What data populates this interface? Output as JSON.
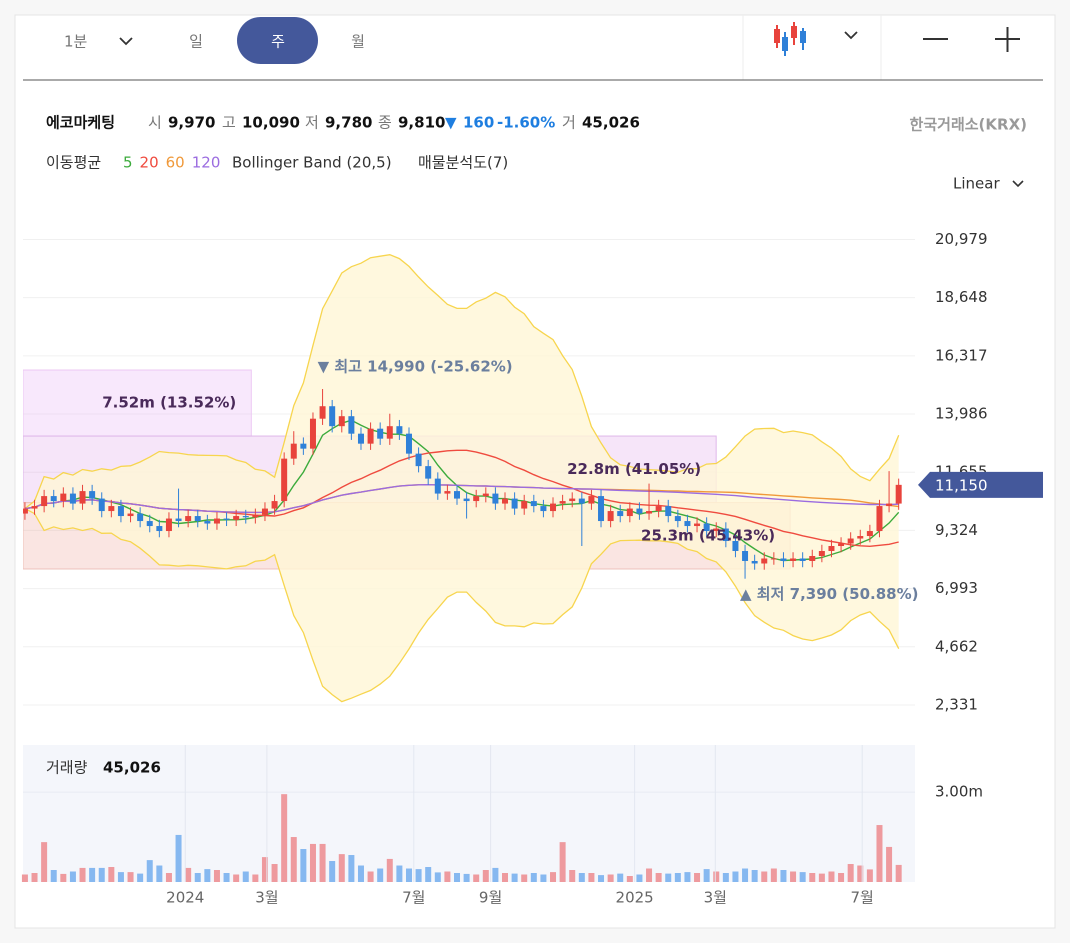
{
  "toolbar": {
    "interval": "1분",
    "tabs": [
      "일",
      "주",
      "월"
    ],
    "active_tab": 1,
    "scale": "Linear"
  },
  "header": {
    "name": "에코마케팅",
    "open_label": "시",
    "open": "9,970",
    "high_label": "고",
    "high": "10,090",
    "low_label": "저",
    "low": "9,780",
    "close_label": "종",
    "close": "9,810",
    "change_arrow": "▼",
    "change": "160",
    "change_pct": "-1.60%",
    "volume_label": "거",
    "volume": "45,026",
    "exchange": "한국거래소(KRX)"
  },
  "chart_data": {
    "type": "candlestick",
    "ma_label": "이동평균",
    "moving_averages": [
      {
        "period": 5,
        "color": "#3cab3c"
      },
      {
        "period": 20,
        "color": "#ef4b3f"
      },
      {
        "period": 60,
        "color": "#f0993a"
      },
      {
        "period": 120,
        "color": "#9b6ce0"
      }
    ],
    "bollinger": {
      "label": "Bollinger Band (20,5)",
      "period": 20,
      "k": 5,
      "color": "#f7d54e",
      "fill": "#fff6d6"
    },
    "up_color": "#e8433c",
    "down_color": "#2f80d8",
    "xlim": [
      -0.2,
      92.7
    ],
    "xticks": [
      {
        "value": 16.7,
        "label": "2024"
      },
      {
        "value": 25.2,
        "label": "3월"
      },
      {
        "value": 40.5,
        "label": "7월"
      },
      {
        "value": 48.5,
        "label": "9월"
      },
      {
        "value": 63.5,
        "label": "2025"
      },
      {
        "value": 71.9,
        "label": "3월"
      },
      {
        "value": 87.2,
        "label": "7월"
      }
    ],
    "ylim": [
      1730,
      21960
    ],
    "yticks": [
      {
        "value": 2331,
        "label": "2,331"
      },
      {
        "value": 4662,
        "label": "4,662"
      },
      {
        "value": 6993,
        "label": "6,993"
      },
      {
        "value": 9324,
        "label": "9,324"
      },
      {
        "value": 11655,
        "label": "11,655"
      },
      {
        "value": 13986,
        "label": "13,986"
      },
      {
        "value": 16317,
        "label": "16,317"
      },
      {
        "value": 18648,
        "label": "18,648"
      },
      {
        "value": 20979,
        "label": "20,979"
      }
    ],
    "grid": true,
    "last_price": {
      "value": 11150,
      "label": "11,150"
    },
    "ohlc": {
      "open": [
        10000,
        10200,
        10300,
        10700,
        10500,
        10800,
        10400,
        10900,
        10600,
        10100,
        10300,
        9900,
        10000,
        9700,
        9500,
        9300,
        9800,
        9700,
        9900,
        9700,
        9600,
        9800,
        9750,
        9900,
        9850,
        9950,
        10200,
        10500,
        12200,
        12800,
        12600,
        13800,
        14300,
        13500,
        13900,
        13200,
        12800,
        13400,
        13000,
        13500,
        13200,
        12400,
        11900,
        11400,
        10800,
        10900,
        10600,
        10500,
        10700,
        10800,
        10400,
        10600,
        10200,
        10500,
        10300,
        10100,
        10400,
        10500,
        10600,
        10400,
        10700,
        9700,
        10100,
        9900,
        10200,
        10000,
        10100,
        10300,
        9900,
        9700,
        9500,
        9600,
        9300,
        9400,
        8900,
        8500,
        8100,
        8000,
        8200,
        8200,
        8100,
        8200,
        8100,
        8300,
        8500,
        8700,
        8800,
        9000,
        9100,
        9300,
        10300,
        10400
      ],
      "high": [
        10450,
        10550,
        10950,
        10950,
        11050,
        11050,
        11150,
        11150,
        10850,
        10550,
        10550,
        10250,
        10250,
        9950,
        9750,
        10050,
        11000,
        10150,
        10150,
        9950,
        10050,
        10050,
        10150,
        10150,
        10200,
        10450,
        10750,
        12450,
        13300,
        13050,
        14050,
        14990,
        14550,
        14150,
        14150,
        13450,
        13650,
        13650,
        14000,
        13750,
        13450,
        12650,
        12150,
        11650,
        11150,
        11150,
        10850,
        10950,
        11050,
        11050,
        10850,
        10850,
        10750,
        10750,
        10550,
        10650,
        10750,
        10850,
        10850,
        10950,
        10950,
        10350,
        10350,
        10450,
        10450,
        11200,
        10550,
        10550,
        10150,
        9950,
        9850,
        9850,
        9650,
        9650,
        9150,
        8750,
        8350,
        8450,
        8450,
        8450,
        8450,
        8450,
        8550,
        8750,
        8950,
        9050,
        9250,
        9350,
        9550,
        10550,
        11700,
        11400
      ],
      "low": [
        9750,
        9950,
        10050,
        10250,
        10250,
        10150,
        10150,
        10350,
        9850,
        9850,
        9650,
        9650,
        9450,
        9250,
        9050,
        9050,
        9450,
        9450,
        9450,
        9350,
        9350,
        9500,
        9500,
        9600,
        9600,
        9700,
        9950,
        10250,
        11950,
        12350,
        12350,
        13550,
        13250,
        13250,
        12950,
        12550,
        12550,
        12750,
        12750,
        12950,
        12150,
        11650,
        11150,
        10550,
        10550,
        10350,
        9800,
        10250,
        10450,
        10150,
        10150,
        9950,
        9950,
        10050,
        9850,
        9850,
        10150,
        10250,
        8700,
        10150,
        9450,
        9450,
        9650,
        9650,
        9750,
        9750,
        9850,
        9650,
        9450,
        9250,
        9250,
        9050,
        9050,
        8650,
        8250,
        7390,
        7750,
        7750,
        7950,
        7850,
        7850,
        7850,
        7850,
        8050,
        8250,
        8450,
        8550,
        8750,
        8850,
        9050,
        10050,
        10150
      ],
      "close": [
        10200,
        10300,
        10700,
        10500,
        10800,
        10400,
        10900,
        10600,
        10100,
        10300,
        9900,
        10000,
        9700,
        9500,
        9300,
        9800,
        9700,
        9900,
        9700,
        9600,
        9800,
        9750,
        9900,
        9850,
        9950,
        10200,
        10500,
        12200,
        12800,
        12600,
        13800,
        14300,
        13500,
        13900,
        13200,
        12800,
        13400,
        13000,
        13500,
        13200,
        12400,
        11900,
        11400,
        10800,
        10900,
        10600,
        10500,
        10700,
        10800,
        10400,
        10600,
        10200,
        10500,
        10300,
        10100,
        10400,
        10500,
        10600,
        10400,
        10700,
        9700,
        10100,
        9900,
        10200,
        10000,
        10100,
        10300,
        9900,
        9700,
        9500,
        9600,
        9300,
        9400,
        8900,
        8500,
        8100,
        8000,
        8200,
        8200,
        8100,
        8200,
        8100,
        8300,
        8500,
        8700,
        8800,
        9000,
        9100,
        9300,
        10300,
        10400,
        11150
      ]
    },
    "annotations": [
      {
        "index": 31,
        "text": "▼ 최고 14,990 (-25.62%)"
      },
      {
        "index": 75,
        "text": "▲ 최저 7,390 (50.88%)"
      }
    ],
    "volume_profile": {
      "label": "매물분석도(7)",
      "price_ranges": [
        [
          13105,
          15750
        ],
        [
          10440,
          13105
        ],
        [
          7780,
          10440
        ]
      ],
      "volumes": [
        7520000,
        22800000,
        25300000
      ],
      "percents": [
        13.52,
        41.05,
        45.43
      ],
      "value_labels": [
        "7.52m (13.52%)",
        "22.8m (41.05%)",
        "25.3m (45.43%)"
      ],
      "colors": [
        "rgba(235,190,245,0.35)",
        "rgba(225,170,235,0.3)",
        "rgba(240,170,160,0.3)"
      ],
      "strokes": [
        "#ecc8f3",
        "#dfb6ea",
        "#eec2bb"
      ]
    },
    "volume": {
      "label": "거래량",
      "last": "45,026",
      "ylim": [
        0,
        4570000
      ],
      "yticks": [
        {
          "value": 3000000,
          "label": "3.00m"
        }
      ],
      "values": [
        250000,
        300000,
        1330000,
        400000,
        270000,
        350000,
        470000,
        470000,
        470000,
        500000,
        330000,
        330000,
        280000,
        730000,
        550000,
        300000,
        1570000,
        470000,
        300000,
        430000,
        400000,
        300000,
        250000,
        350000,
        250000,
        830000,
        600000,
        2930000,
        1500000,
        1100000,
        1270000,
        1270000,
        700000,
        930000,
        900000,
        550000,
        350000,
        450000,
        770000,
        550000,
        450000,
        430000,
        500000,
        320000,
        350000,
        300000,
        270000,
        250000,
        400000,
        470000,
        300000,
        280000,
        250000,
        300000,
        250000,
        330000,
        1330000,
        400000,
        300000,
        300000,
        230000,
        250000,
        280000,
        200000,
        250000,
        450000,
        300000,
        280000,
        300000,
        330000,
        300000,
        430000,
        350000,
        300000,
        350000,
        450000,
        400000,
        350000,
        450000,
        400000,
        350000,
        330000,
        300000,
        280000,
        350000,
        300000,
        600000,
        550000,
        420000,
        1900000,
        1170000,
        570000
      ]
    }
  }
}
